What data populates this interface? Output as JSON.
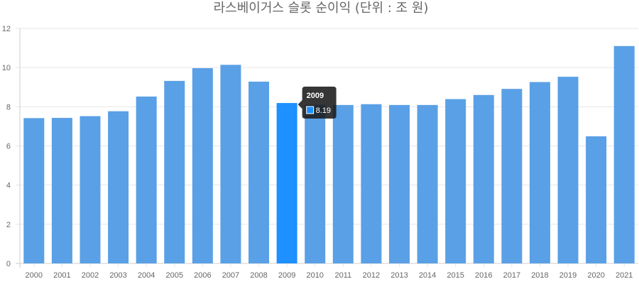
{
  "chart_data": {
    "type": "bar",
    "title": "라스베이거스 슬롯 순이익 (단위 : 조 원)",
    "categories": [
      "2000",
      "2001",
      "2002",
      "2003",
      "2004",
      "2005",
      "2006",
      "2007",
      "2008",
      "2009",
      "2010",
      "2011",
      "2012",
      "2013",
      "2014",
      "2015",
      "2016",
      "2017",
      "2018",
      "2019",
      "2020",
      "2021"
    ],
    "values": [
      7.42,
      7.43,
      7.52,
      7.77,
      8.52,
      9.32,
      9.97,
      10.14,
      9.28,
      8.19,
      8.1,
      8.09,
      8.13,
      8.09,
      8.09,
      8.39,
      8.6,
      8.91,
      9.26,
      9.53,
      6.49,
      11.1
    ],
    "ylim": [
      0,
      12
    ],
    "yticks": [
      0,
      2,
      4,
      6,
      8,
      10,
      12
    ],
    "grid": true,
    "legend": "none",
    "highlighted_index": 9,
    "tooltip": {
      "title": "2009",
      "value": "8.19"
    },
    "colors": {
      "bar": "#5aa0e6",
      "bar_active": "#1e90ff",
      "grid": "#e6e6e6",
      "axis": "#cccccc",
      "tooltip_bg": "#1a1a1a"
    }
  }
}
